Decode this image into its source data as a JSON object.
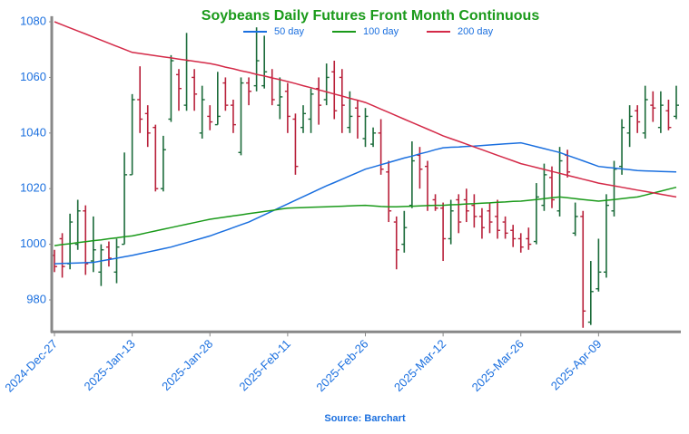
{
  "chart_data": {
    "type": "ohlc",
    "title": "Soybeans Daily Futures Front Month Continuous",
    "source": "Source: Barchart",
    "categories": [
      "2024-Dec-27",
      null,
      null,
      null,
      null,
      null,
      null,
      null,
      null,
      null,
      "2025-Jan-13",
      null,
      null,
      null,
      null,
      null,
      null,
      null,
      null,
      null,
      "2025-Jan-28",
      null,
      null,
      null,
      null,
      null,
      null,
      null,
      null,
      null,
      "2025-Feb-11",
      null,
      null,
      null,
      null,
      null,
      null,
      null,
      null,
      null,
      "2025-Feb-26",
      null,
      null,
      null,
      null,
      null,
      null,
      null,
      null,
      null,
      "2025-Mar-12",
      null,
      null,
      null,
      null,
      null,
      null,
      null,
      null,
      null,
      "2025-Mar-26",
      null,
      null,
      null,
      null,
      null,
      null,
      null,
      null,
      null,
      "2025-Apr-09",
      null,
      null,
      null,
      null,
      null,
      null,
      null,
      null,
      null,
      null
    ],
    "ohlc": {
      "up_color": "#1b6b3a",
      "down_color": "#b8203a",
      "open": [
        996,
        1002,
        993,
        1000,
        1012,
        994,
        990,
        999,
        990,
        1000,
        1025,
        1052,
        1047,
        1042,
        1020,
        1045,
        1061,
        1050,
        1060,
        1040,
        1046,
        1043,
        1058,
        1050,
        1033,
        1058,
        1057,
        1057,
        1060,
        1050,
        1055,
        1045,
        1042,
        1045,
        1056,
        1052,
        1062,
        1060,
        1042,
        1049,
        1038,
        1036,
        1040,
        1026,
        1008,
        1000,
        1014,
        1032,
        1028,
        1016,
        1013,
        1002,
        1016,
        1016,
        1014,
        1010,
        1012,
        1010,
        1008,
        1005,
        1002,
        1002,
        1001,
        1014,
        1024,
        1012,
        1032,
        1004,
        1010,
        972,
        984,
        990,
        1012,
        1028,
        1040,
        1048,
        1040,
        1050,
        1042,
        1048,
        1046
      ],
      "high": [
        998,
        1004,
        1011,
        1016,
        1014,
        1010,
        1000,
        1001,
        1002,
        1033,
        1054,
        1064,
        1050,
        1043,
        1039,
        1068,
        1063,
        1076,
        1063,
        1057,
        1050,
        1062,
        1060,
        1052,
        1060,
        1060,
        1078,
        1075,
        1063,
        1060,
        1058,
        1047,
        1050,
        1056,
        1060,
        1065,
        1066,
        1063,
        1055,
        1052,
        1049,
        1042,
        1045,
        1030,
        1010,
        1012,
        1037,
        1035,
        1030,
        1018,
        1015,
        1016,
        1018,
        1020,
        1018,
        1013,
        1015,
        1016,
        1010,
        1007,
        1004,
        1006,
        1022,
        1029,
        1028,
        1035,
        1034,
        1015,
        1012,
        994,
        1002,
        1018,
        1030,
        1045,
        1050,
        1050,
        1057,
        1055,
        1055,
        1052,
        1057
      ],
      "low": [
        990,
        988,
        991,
        998,
        989,
        990,
        985,
        992,
        986,
        1000,
        1025,
        1040,
        1035,
        1019,
        1019,
        1044,
        1048,
        1048,
        1048,
        1038,
        1041,
        1043,
        1048,
        1040,
        1032,
        1050,
        1055,
        1056,
        1050,
        1045,
        1040,
        1025,
        1040,
        1040,
        1043,
        1050,
        1045,
        1040,
        1040,
        1038,
        1035,
        1035,
        1025,
        1008,
        991,
        997,
        1013,
        1020,
        1012,
        1012,
        994,
        1000,
        1004,
        1008,
        1006,
        1002,
        1004,
        1002,
        1002,
        999,
        997,
        998,
        1000,
        1012,
        1013,
        1010,
        1024,
        1003,
        970,
        971,
        983,
        988,
        1010,
        1025,
        1035,
        1040,
        1038,
        1044,
        1040,
        1041,
        1045
      ],
      "close": [
        992,
        992,
        1008,
        1012,
        993,
        998,
        998,
        995,
        999,
        1025,
        1052,
        1045,
        1040,
        1020,
        1034,
        1066,
        1056,
        1066,
        1054,
        1052,
        1044,
        1046,
        1050,
        1043,
        1058,
        1055,
        1066,
        1062,
        1052,
        1053,
        1046,
        1028,
        1047,
        1054,
        1050,
        1060,
        1048,
        1050,
        1046,
        1046,
        1046,
        1040,
        1027,
        1012,
        998,
        1006,
        1030,
        1027,
        1014,
        1013,
        1002,
        1012,
        1008,
        1012,
        1010,
        1006,
        1008,
        1005,
        1004,
        1002,
        999,
        1000,
        1017,
        1025,
        1016,
        1030,
        1026,
        1010,
        976,
        983,
        990,
        1014,
        1027,
        1042,
        1046,
        1044,
        1052,
        1049,
        1050,
        1042,
        1050
      ]
    },
    "series": [
      {
        "name": "50 day",
        "color": "#1a6fdf",
        "values": [
          993,
          993.1,
          993.2,
          993.3,
          993.4,
          993.5,
          994,
          994.5,
          995,
          995.5,
          996,
          996.6,
          997.2,
          997.8,
          998.4,
          999,
          999.8,
          1000.6,
          1001.4,
          1002.2,
          1003,
          1004,
          1005,
          1006,
          1007,
          1008,
          1009.3,
          1010.6,
          1011.9,
          1013.2,
          1014.5,
          1015.8,
          1017.1,
          1018.4,
          1019.7,
          1021,
          1022.2,
          1023.4,
          1024.6,
          1025.8,
          1027,
          1027.8,
          1028.6,
          1029.4,
          1030.2,
          1031,
          1031.7,
          1032.5,
          1033.2,
          1034,
          1034.7,
          1034.9,
          1035,
          1035.2,
          1035.3,
          1035.5,
          1035.7,
          1035.9,
          1036.1,
          1036.3,
          1036.5,
          1035.8,
          1035.1,
          1034.4,
          1033.7,
          1033,
          1032,
          1031,
          1030,
          1029,
          1028,
          1027.7,
          1027.4,
          1027.1,
          1026.8,
          1026.5,
          1026.4,
          1026.3,
          1026.2,
          1026.1,
          1026
        ]
      },
      {
        "name": "100 day",
        "color": "#1a9a1a",
        "values": [
          999.5,
          999.9,
          1000.2,
          1000.6,
          1000.9,
          1001.3,
          1001.6,
          1002,
          1002.3,
          1002.7,
          1003,
          1003.6,
          1004.2,
          1004.8,
          1005.4,
          1006,
          1006.6,
          1007.2,
          1007.8,
          1008.4,
          1009,
          1009.4,
          1009.8,
          1010.2,
          1010.6,
          1011,
          1011.4,
          1011.8,
          1012.2,
          1012.6,
          1013,
          1013.1,
          1013.2,
          1013.3,
          1013.4,
          1013.5,
          1013.6,
          1013.7,
          1013.8,
          1013.9,
          1014,
          1013.8,
          1013.6,
          1013.5,
          1013.5,
          1013.6,
          1013.7,
          1013.8,
          1013.9,
          1014,
          1014,
          1014.2,
          1014.3,
          1014.5,
          1014.6,
          1014.8,
          1014.9,
          1015.1,
          1015.2,
          1015.4,
          1015.5,
          1015.8,
          1016.1,
          1016.4,
          1016.7,
          1017,
          1016.7,
          1016.4,
          1016.1,
          1015.8,
          1015.5,
          1015.8,
          1016.1,
          1016.4,
          1016.7,
          1017,
          1017.7,
          1018.4,
          1019.1,
          1019.8,
          1020.5
        ]
      },
      {
        "name": "200 day",
        "color": "#d42a48",
        "values": [
          1080,
          1078.9,
          1077.8,
          1076.7,
          1075.6,
          1074.5,
          1073.4,
          1072.3,
          1071.2,
          1070.1,
          1069,
          1068.6,
          1068.2,
          1067.8,
          1067.4,
          1067,
          1066.6,
          1066.2,
          1065.8,
          1065.4,
          1065,
          1064.4,
          1063.7,
          1063.1,
          1062.4,
          1061.8,
          1061.1,
          1060.5,
          1059.8,
          1059.2,
          1058.5,
          1057.8,
          1057,
          1056.3,
          1055.5,
          1054.8,
          1054,
          1053.3,
          1052.5,
          1051.8,
          1051,
          1049.8,
          1048.6,
          1047.4,
          1046.2,
          1045,
          1043.8,
          1042.6,
          1041.4,
          1040.2,
          1039,
          1038,
          1037,
          1036,
          1035,
          1034,
          1033,
          1032,
          1031,
          1030,
          1029,
          1028.3,
          1027.6,
          1026.9,
          1026.2,
          1025.5,
          1024.8,
          1024.1,
          1023.4,
          1022.7,
          1022,
          1021.5,
          1021,
          1020.5,
          1020,
          1019.5,
          1019,
          1018.5,
          1018,
          1017.5,
          1017
        ]
      }
    ],
    "ylim": [
      968.5,
      1082
    ],
    "yticks": [
      980,
      1000,
      1020,
      1040,
      1060,
      1080
    ],
    "grid": false,
    "legend": "upper center",
    "title_color": "#1a9a1a",
    "label_color": "#1a6fdf"
  }
}
